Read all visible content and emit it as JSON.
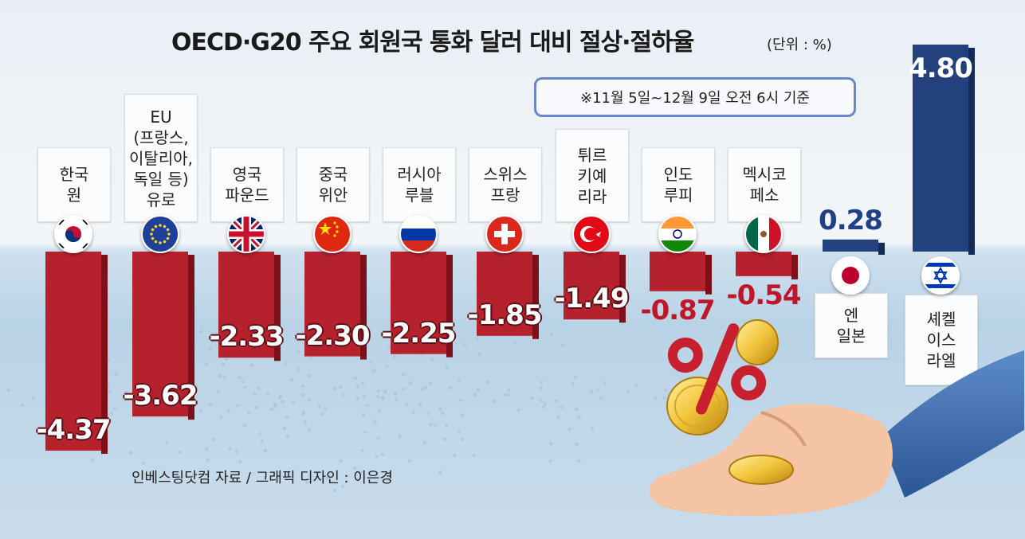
{
  "title": "OECD·G20 주요 회원국 통화 달러 대비 절상·절하율",
  "unit": "(단위 : %)",
  "period_note": "※11월 5일~12월 9일 오전 6시 기준",
  "source": "인베스팅닷컴 자료 / 그래픽 디자인 : 이은경",
  "colors": {
    "negative": "#b5222e",
    "positive": "#23427d",
    "water": "#bcd5e8"
  },
  "chart_data": {
    "type": "bar",
    "title": "OECD·G20 주요 회원국 통화 달러 대비 절상·절하율",
    "unit": "%",
    "categories": [
      "한국 원",
      "EU (프랑스, 이탈리아, 독일 등) 유로",
      "영국 파운드",
      "중국 위안",
      "러시아 루블",
      "스위스 프랑",
      "튀르키예 리라",
      "인도 루피",
      "멕시코 페소",
      "엔 일본",
      "셰켈 이스라엘"
    ],
    "values": [
      -4.37,
      -3.62,
      -2.33,
      -2.3,
      -2.25,
      -1.85,
      -1.49,
      -0.87,
      -0.54,
      0.28,
      4.8
    ],
    "value_labels": [
      "-4.37",
      "-3.62",
      "-2.33",
      "-2.30",
      "-2.25",
      "-1.85",
      "-1.49",
      "-0.87",
      "-0.54",
      "0.28",
      "4.80"
    ],
    "category_lines": [
      [
        "한국",
        "원"
      ],
      [
        "EU",
        "(프랑스,",
        "이탈리아,",
        "독일 등)",
        "유로"
      ],
      [
        "영국",
        "파운드"
      ],
      [
        "중국",
        "위안"
      ],
      [
        "러시아",
        "루블"
      ],
      [
        "스위스",
        "프랑"
      ],
      [
        "튀르",
        "키예",
        "리라"
      ],
      [
        "인도",
        "루피"
      ],
      [
        "멕시코",
        "페소"
      ],
      [
        "엔",
        "일본"
      ],
      [
        "셰켈",
        "이스",
        "라엘"
      ]
    ],
    "flags": [
      "south-korea-flag-icon",
      "eu-flag-icon",
      "uk-flag-icon",
      "china-flag-icon",
      "russia-flag-icon",
      "switzerland-flag-icon",
      "turkey-flag-icon",
      "india-flag-icon",
      "mexico-flag-icon",
      "japan-flag-icon",
      "israel-flag-icon"
    ],
    "xlabel": "",
    "ylabel": "",
    "grid": false,
    "legend": "none"
  }
}
